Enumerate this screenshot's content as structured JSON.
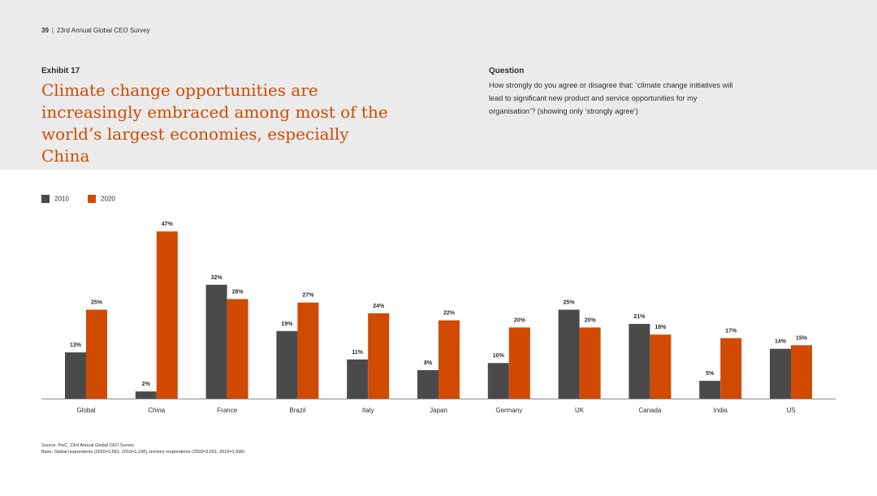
{
  "header": {
    "page_number": "39",
    "separator": "|",
    "report_title": "23rd Annual Global CEO Survey",
    "exhibit_label": "Exhibit 17",
    "title": "Climate change opportunities are increasingly embraced among most of the world’s largest economies, especially China",
    "question_label": "Question",
    "question_text": "How strongly do you agree or disagree that: ‘climate change initiatives will lead to significant new product and service opportunities for my organisation’? (showing only ‘strongly agree’)"
  },
  "colors": {
    "series_2010": "#4a4a4a",
    "series_2020": "#d04a02",
    "title_accent": "#d04a02",
    "header_background": "#ebebeb"
  },
  "chart_data": {
    "type": "bar",
    "title": "Climate change opportunities are increasingly embraced among most of the world’s largest economies, especially China",
    "xlabel": "",
    "ylabel": "",
    "ylim": [
      0,
      50
    ],
    "grid": false,
    "legend_position": "top-left",
    "value_suffix": "%",
    "categories": [
      "Global",
      "China",
      "France",
      "Brazil",
      "Italy",
      "Japan",
      "Germany",
      "UK",
      "Canada",
      "India",
      "US"
    ],
    "series": [
      {
        "name": "2010",
        "color": "#4a4a4a",
        "values": [
          13,
          2,
          32,
          19,
          11,
          8,
          10,
          25,
          21,
          5,
          14
        ]
      },
      {
        "name": "2020",
        "color": "#d04a02",
        "values": [
          25,
          47,
          28,
          27,
          24,
          22,
          20,
          20,
          18,
          17,
          15
        ]
      }
    ]
  },
  "footnotes": {
    "source": "Source: PwC, 23rd Annual Global CEO Survey",
    "base": "Base: Global respondents (2020=1,581; 2010=1,198), territory respondents (2020=3,501; 2010=1,598)"
  }
}
